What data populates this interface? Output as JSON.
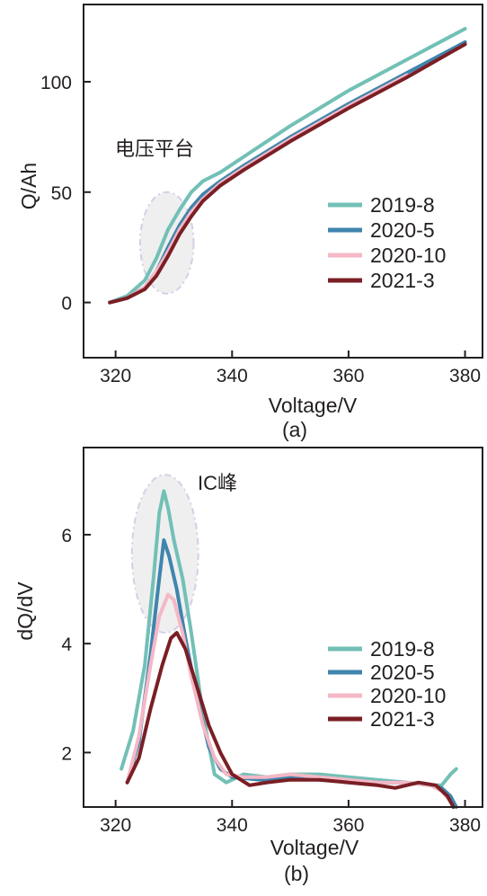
{
  "figure_labels": {
    "a": "(a)",
    "b": "(b)"
  },
  "colors": {
    "2019-8": "#72c0b6",
    "2020-5": "#3f85ad",
    "2020-10": "#f4b8c6",
    "2021-3": "#7a1f25",
    "frame": "#231f20",
    "ellipse_fill": "#ededed",
    "ellipse_stroke": "#c9c8e3"
  },
  "chart_data": [
    {
      "type": "line",
      "panel": "(a)",
      "xlabel": "Voltage/V",
      "ylabel": "Q/Ah",
      "xlim": [
        314.5,
        383
      ],
      "ylim": [
        -25,
        135
      ],
      "xticks": [
        320,
        340,
        360,
        380
      ],
      "yticks": [
        0,
        50,
        100
      ],
      "annotation": "电压平台",
      "legend_position": "right",
      "series": [
        {
          "name": "2019-8",
          "x": [
            319,
            322,
            325,
            327,
            329,
            331,
            333,
            335,
            338,
            342,
            350,
            360,
            370,
            380
          ],
          "y": [
            0,
            3,
            10,
            20,
            33,
            42,
            50,
            55,
            59,
            66,
            80,
            96,
            110,
            124
          ]
        },
        {
          "name": "2020-5",
          "x": [
            319,
            322,
            325,
            327,
            329,
            331,
            333,
            335,
            338,
            342,
            350,
            360,
            370,
            380
          ],
          "y": [
            0,
            2,
            7,
            14,
            25,
            35,
            43,
            49,
            55,
            62,
            75,
            90,
            104,
            118
          ]
        },
        {
          "name": "2020-10",
          "x": [
            319,
            322,
            325,
            327,
            329,
            331,
            333,
            335,
            338,
            342,
            350,
            360,
            370
          ],
          "y": [
            0,
            2,
            7,
            14,
            23,
            33,
            41,
            47,
            54,
            61,
            74,
            89,
            103
          ]
        },
        {
          "name": "2021-3",
          "x": [
            319,
            322,
            325,
            327,
            329,
            331,
            333,
            335,
            338,
            342,
            350,
            360,
            370,
            380
          ],
          "y": [
            0,
            2,
            6,
            12,
            21,
            31,
            39,
            46,
            53,
            60,
            73,
            88,
            102,
            117
          ]
        }
      ]
    },
    {
      "type": "line",
      "panel": "(b)",
      "xlabel": "Voltage/V",
      "ylabel": "dQ/dV",
      "xlim": [
        314.5,
        383
      ],
      "ylim": [
        1,
        7.6
      ],
      "xticks": [
        320,
        340,
        360,
        380
      ],
      "yticks": [
        2,
        4,
        6
      ],
      "annotation": "IC峰",
      "legend_position": "right",
      "series": [
        {
          "name": "2019-8",
          "x": [
            321,
            323,
            325,
            326.5,
            327.5,
            328.3,
            329,
            330,
            331.5,
            333,
            335,
            337,
            339,
            342,
            346,
            350,
            355,
            360,
            365,
            370,
            374,
            376,
            377.5,
            378.5
          ],
          "y": [
            1.7,
            2.4,
            3.6,
            5.2,
            6.4,
            6.8,
            6.5,
            5.9,
            5.2,
            4.2,
            2.7,
            1.6,
            1.45,
            1.6,
            1.55,
            1.6,
            1.6,
            1.55,
            1.5,
            1.45,
            1.4,
            1.4,
            1.6,
            1.7
          ]
        },
        {
          "name": "2020-5",
          "x": [
            322,
            324,
            326,
            327.5,
            328.3,
            329.2,
            330.5,
            332,
            334,
            336,
            338,
            340,
            345,
            350,
            355,
            360,
            365,
            370,
            374,
            376,
            377.5,
            378.5
          ],
          "y": [
            1.45,
            2.2,
            3.8,
            5.2,
            5.9,
            5.6,
            5.0,
            4.1,
            3.0,
            2.1,
            1.7,
            1.55,
            1.5,
            1.55,
            1.5,
            1.5,
            1.45,
            1.45,
            1.4,
            1.35,
            1.2,
            1.0
          ]
        },
        {
          "name": "2020-10",
          "x": [
            322,
            324,
            326,
            327.5,
            329,
            330,
            331.5,
            333,
            335,
            337,
            339,
            342,
            346,
            350,
            355,
            360,
            365,
            370,
            374,
            376,
            377.5
          ],
          "y": [
            1.45,
            2.3,
            3.6,
            4.5,
            4.9,
            4.8,
            4.2,
            3.4,
            2.5,
            1.9,
            1.6,
            1.55,
            1.55,
            1.6,
            1.55,
            1.5,
            1.45,
            1.45,
            1.4,
            1.3,
            1.1
          ]
        },
        {
          "name": "2021-3",
          "x": [
            322,
            324,
            326,
            328,
            329.5,
            330.5,
            332,
            334,
            336,
            338,
            340,
            343,
            346,
            350,
            355,
            360,
            365,
            368,
            372,
            375,
            377,
            378
          ],
          "y": [
            1.45,
            1.9,
            2.8,
            3.6,
            4.1,
            4.2,
            3.9,
            3.2,
            2.5,
            2.0,
            1.6,
            1.4,
            1.45,
            1.5,
            1.5,
            1.45,
            1.4,
            1.35,
            1.45,
            1.4,
            1.2,
            1.0
          ]
        }
      ]
    }
  ]
}
